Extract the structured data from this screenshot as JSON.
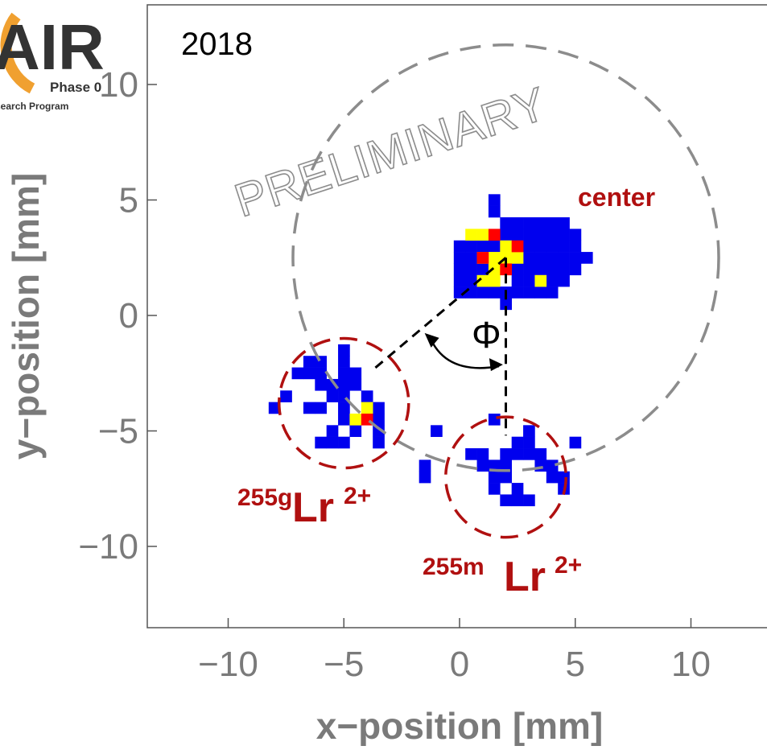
{
  "logo": {
    "main": "AIR",
    "line1": "Phase 0",
    "line2": "search Program"
  },
  "chart_data": {
    "type": "heatmap",
    "title": "2018",
    "xlabel": "x−position [mm]",
    "ylabel": "y−position [mm]",
    "xlim": [
      -13.5,
      13.5
    ],
    "ylim": [
      -13.5,
      13.5
    ],
    "x_ticks": [
      -10,
      -5,
      0,
      5,
      10
    ],
    "y_ticks": [
      10,
      5,
      0,
      -5,
      -10
    ],
    "tick_labels": {
      "x": [
        "−10",
        "−5",
        "0",
        "5",
        "10"
      ],
      "y": [
        "10",
        "5",
        "0",
        "−5",
        "−10"
      ]
    },
    "watermark": "PRELIMINARY",
    "colors": {
      "low": "#0000ee",
      "mid": "#ffff00",
      "high": "#ff0000",
      "red_annotation": "#b01010",
      "gray_circle": "#8c8c8c"
    },
    "pixel_size_mm": 0.5,
    "clusters": [
      {
        "label": "center",
        "center": [
          2.0,
          2.5
        ],
        "blue_cells": [
          [
            1.5,
            5.0
          ],
          [
            1.5,
            4.5
          ],
          [
            2.0,
            4.0
          ],
          [
            2.5,
            4.0
          ],
          [
            3.0,
            4.0
          ],
          [
            3.5,
            4.0
          ],
          [
            4.0,
            4.0
          ],
          [
            4.5,
            4.0
          ],
          [
            2.0,
            3.5
          ],
          [
            2.5,
            3.5
          ],
          [
            3.0,
            3.5
          ],
          [
            3.5,
            3.5
          ],
          [
            4.0,
            3.5
          ],
          [
            4.5,
            3.5
          ],
          [
            5.0,
            3.5
          ],
          [
            0.0,
            3.0
          ],
          [
            0.5,
            3.0
          ],
          [
            1.0,
            3.0
          ],
          [
            1.5,
            3.0
          ],
          [
            2.5,
            3.0
          ],
          [
            3.0,
            3.0
          ],
          [
            3.5,
            3.0
          ],
          [
            4.0,
            3.0
          ],
          [
            4.5,
            3.0
          ],
          [
            5.0,
            3.0
          ],
          [
            0.0,
            2.5
          ],
          [
            0.5,
            2.5
          ],
          [
            3.0,
            2.5
          ],
          [
            3.5,
            2.5
          ],
          [
            4.0,
            2.5
          ],
          [
            4.5,
            2.5
          ],
          [
            5.0,
            2.5
          ],
          [
            5.5,
            2.5
          ],
          [
            0.0,
            2.0
          ],
          [
            0.5,
            2.0
          ],
          [
            1.0,
            2.0
          ],
          [
            2.5,
            2.0
          ],
          [
            3.0,
            2.0
          ],
          [
            3.5,
            2.0
          ],
          [
            4.0,
            2.0
          ],
          [
            4.5,
            2.0
          ],
          [
            5.0,
            2.0
          ],
          [
            0.0,
            1.5
          ],
          [
            0.5,
            1.5
          ],
          [
            2.5,
            1.5
          ],
          [
            3.0,
            1.5
          ],
          [
            4.0,
            1.5
          ],
          [
            4.5,
            1.5
          ],
          [
            0.0,
            1.0
          ],
          [
            0.5,
            1.0
          ],
          [
            1.0,
            1.0
          ],
          [
            1.5,
            1.0
          ],
          [
            2.0,
            1.0
          ],
          [
            2.5,
            1.0
          ],
          [
            3.0,
            1.0
          ],
          [
            3.5,
            1.0
          ],
          [
            4.0,
            1.0
          ],
          [
            2.0,
            0.5
          ]
        ],
        "yellow_cells": [
          [
            0.5,
            3.5
          ],
          [
            1.0,
            3.5
          ],
          [
            2.0,
            3.0
          ],
          [
            1.5,
            2.5
          ],
          [
            2.0,
            2.5
          ],
          [
            2.5,
            2.5
          ],
          [
            1.5,
            2.0
          ],
          [
            2.0,
            2.0
          ],
          [
            1.0,
            1.5
          ],
          [
            1.5,
            1.5
          ],
          [
            3.5,
            1.5
          ],
          [
            1.0,
            2.5
          ]
        ],
        "red_cells": [
          [
            1.5,
            3.5
          ],
          [
            1.0,
            2.5
          ],
          [
            2.5,
            3.0
          ],
          [
            2.0,
            2.0
          ]
        ]
      },
      {
        "label": "255gLr2+",
        "center": [
          -5.0,
          -3.8
        ],
        "blue_cells": [
          [
            -5.0,
            -1.5
          ],
          [
            -5.0,
            -2.0
          ],
          [
            -6.5,
            -2.0
          ],
          [
            -6.0,
            -2.0
          ],
          [
            -7.0,
            -2.5
          ],
          [
            -6.5,
            -2.5
          ],
          [
            -6.0,
            -2.5
          ],
          [
            -5.0,
            -2.5
          ],
          [
            -4.5,
            -2.5
          ],
          [
            -6.0,
            -3.0
          ],
          [
            -5.5,
            -3.0
          ],
          [
            -5.0,
            -3.0
          ],
          [
            -4.5,
            -3.0
          ],
          [
            -7.5,
            -3.5
          ],
          [
            -5.5,
            -3.5
          ],
          [
            -5.0,
            -3.5
          ],
          [
            -4.0,
            -3.5
          ],
          [
            -8.0,
            -4.0
          ],
          [
            -6.5,
            -4.0
          ],
          [
            -6.0,
            -4.0
          ],
          [
            -5.0,
            -4.0
          ],
          [
            -3.5,
            -4.0
          ],
          [
            -5.0,
            -4.5
          ],
          [
            -3.5,
            -4.5
          ],
          [
            -5.5,
            -5.0
          ],
          [
            -4.5,
            -5.0
          ],
          [
            -3.5,
            -5.0
          ],
          [
            -6.0,
            -5.5
          ],
          [
            -5.5,
            -5.5
          ],
          [
            -5.0,
            -5.5
          ],
          [
            -3.5,
            -5.5
          ]
        ],
        "yellow_cells": [
          [
            -4.0,
            -4.0
          ],
          [
            -4.5,
            -4.5
          ]
        ],
        "red_cells": [
          [
            -4.0,
            -4.5
          ]
        ]
      },
      {
        "label": "255mLr2+",
        "center": [
          2.0,
          -7.0
        ],
        "blue_cells": [
          [
            1.5,
            -4.5
          ],
          [
            -1.0,
            -5.0
          ],
          [
            3.0,
            -5.0
          ],
          [
            2.5,
            -5.5
          ],
          [
            3.0,
            -5.5
          ],
          [
            5.0,
            -5.5
          ],
          [
            0.5,
            -6.0
          ],
          [
            1.0,
            -6.0
          ],
          [
            2.0,
            -6.0
          ],
          [
            2.5,
            -6.0
          ],
          [
            3.0,
            -6.0
          ],
          [
            3.5,
            -6.0
          ],
          [
            -1.5,
            -6.5
          ],
          [
            1.0,
            -6.5
          ],
          [
            1.5,
            -6.5
          ],
          [
            2.0,
            -6.5
          ],
          [
            3.5,
            -6.5
          ],
          [
            4.0,
            -6.5
          ],
          [
            -1.5,
            -7.0
          ],
          [
            1.5,
            -7.0
          ],
          [
            2.0,
            -7.0
          ],
          [
            4.0,
            -7.0
          ],
          [
            4.5,
            -7.0
          ],
          [
            1.5,
            -7.5
          ],
          [
            2.5,
            -7.5
          ],
          [
            4.5,
            -7.5
          ],
          [
            2.0,
            -8.0
          ],
          [
            2.5,
            -8.0
          ],
          [
            3.0,
            -8.0
          ]
        ],
        "yellow_cells": [],
        "red_cells": []
      }
    ],
    "annotations": [
      {
        "text": "center"
      },
      {
        "mass": "255g",
        "ion": "Lr",
        "charge": "2+"
      },
      {
        "mass": "255m",
        "ion": "Lr",
        "charge": "2+"
      },
      {
        "text": "Φ"
      }
    ]
  }
}
